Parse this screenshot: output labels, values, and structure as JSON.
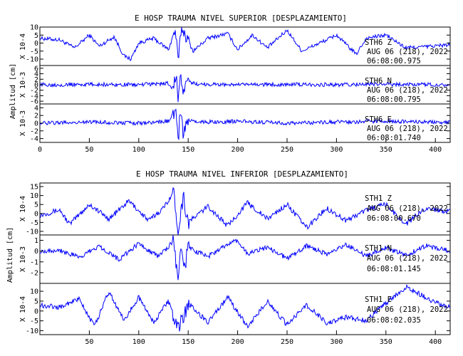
{
  "chart_data": [
    {
      "type": "line",
      "title": "E HOSP TRAUMA NIVEL SUPERIOR [DESPLAZAMIENTO]",
      "ylabel": "Amplitud [cm]",
      "xlim": [
        0,
        415
      ],
      "x_ticks": [
        "0",
        "50",
        "100",
        "150",
        "200",
        "250",
        "300",
        "350",
        "400"
      ],
      "grid": false,
      "line_color": "#0000ff",
      "panels": [
        {
          "station": "STH6 Z",
          "date": "AUG 06 (218), 2022",
          "time": "06:08:00.975",
          "scale": "X 10-4",
          "ylim": [
            -14,
            10
          ],
          "y_ticks": [
            "10",
            "5",
            "0",
            "-5",
            "-10"
          ],
          "series": [
            {
              "x": [
                0,
                20,
                35,
                50,
                60,
                75,
                85,
                92,
                100,
                115,
                130,
                137,
                140,
                143,
                148,
                155,
                170,
                190,
                200,
                215,
                230,
                250,
                265,
                290,
                300,
                320,
                330,
                350,
                370,
                395,
                415
              ],
              "y": [
                3,
                2,
                -3,
                5,
                -2,
                4,
                -8,
                -10,
                0,
                3,
                -4,
                8,
                -12,
                10,
                4,
                -5,
                3,
                6,
                -4,
                5,
                -3,
                8,
                -5,
                2,
                5,
                -7,
                3,
                5,
                -3,
                -2,
                -1
              ]
            }
          ]
        },
        {
          "station": "STH6 N",
          "date": "AUG 06 (218), 2022",
          "time": "06:08:00.795",
          "scale": "X 10-3",
          "ylim": [
            -7,
            7
          ],
          "y_ticks": [
            "6",
            "4",
            "2",
            "0",
            "-2",
            "-4",
            "-6"
          ],
          "series": [
            {
              "x": [
                0,
                50,
                100,
                130,
                135,
                138,
                140,
                142,
                145,
                150,
                160,
                200,
                250,
                300,
                350,
                415
              ],
              "y": [
                0,
                0.1,
                0,
                0.5,
                -2,
                5,
                -6,
                4,
                -3,
                1,
                0.2,
                0,
                0.1,
                0,
                0.2,
                0
              ]
            }
          ]
        },
        {
          "station": "STH6 E",
          "date": "AUG 06 (218), 2022",
          "time": "06:08:01.740",
          "scale": "X 10-3",
          "ylim": [
            -5,
            5
          ],
          "y_ticks": [
            "4",
            "2",
            "0",
            "-2",
            "-4"
          ],
          "series": [
            {
              "x": [
                0,
                50,
                100,
                130,
                138,
                140,
                142,
                145,
                150,
                160,
                200,
                250,
                300,
                350,
                415
              ],
              "y": [
                0,
                0.3,
                0,
                0.5,
                3,
                -5,
                4,
                -3,
                1,
                0.2,
                0.5,
                0,
                0.3,
                0.5,
                0.2
              ]
            }
          ]
        }
      ]
    },
    {
      "type": "line",
      "title": "E HOSP TRAUMA NIVEL INFERIOR [DESPLAZAMIENTO]",
      "ylabel": "Amplitud [cm]",
      "xlim": [
        0,
        415
      ],
      "x_ticks": [
        "50",
        "100",
        "150",
        "200",
        "250",
        "300",
        "350",
        "400"
      ],
      "grid": false,
      "line_color": "#0000ff",
      "panels": [
        {
          "station": "STH1 Z",
          "date": "AUG 06 (218), 2022",
          "time": "06:08:00.670",
          "scale": "X 10-4",
          "ylim": [
            -12,
            17
          ],
          "y_ticks": [
            "15",
            "10",
            "5",
            "0",
            "-5",
            "-10"
          ],
          "series": [
            {
              "x": [
                0,
                20,
                30,
                50,
                70,
                90,
                110,
                125,
                135,
                140,
                145,
                150,
                170,
                190,
                210,
                230,
                250,
                270,
                290,
                310,
                330,
                350,
                370,
                390,
                415
              ],
              "y": [
                -1,
                2,
                -6,
                5,
                -3,
                7,
                -4,
                3,
                12,
                -9,
                10,
                -5,
                4,
                -7,
                6,
                -3,
                5,
                -8,
                3,
                -4,
                2,
                5,
                -6,
                3,
                1
              ]
            }
          ]
        },
        {
          "station": "STH1 N",
          "date": "AUG 06 (218), 2022",
          "time": "06:08:01.145",
          "scale": "X 10-3",
          "ylim": [
            -3,
            1.5
          ],
          "y_ticks": [
            "1",
            "0",
            "-1",
            "-2"
          ],
          "series": [
            {
              "x": [
                0,
                20,
                40,
                60,
                80,
                100,
                120,
                135,
                140,
                143,
                146,
                150,
                170,
                190,
                200,
                210,
                230,
                250,
                270,
                290,
                310,
                330,
                350,
                370,
                390,
                415
              ],
              "y": [
                0,
                0.1,
                -0.6,
                0.5,
                -0.8,
                0.7,
                -0.5,
                0.9,
                -2.8,
                0.8,
                -1.8,
                0.3,
                -0.5,
                0.6,
                1,
                -0.3,
                0.4,
                -0.7,
                0.5,
                -0.3,
                0.6,
                -0.5,
                0.3,
                -0.4,
                0.5,
                0
              ]
            }
          ]
        },
        {
          "station": "STH1 E",
          "date": "AUG 06 (218), 2022",
          "time": "06:08:02.035",
          "scale": "X 10-4",
          "ylim": [
            -12,
            14
          ],
          "y_ticks": [
            "10",
            "5",
            "0",
            "-5",
            "-10"
          ],
          "series": [
            {
              "x": [
                0,
                20,
                40,
                55,
                70,
                85,
                100,
                115,
                130,
                140,
                150,
                170,
                190,
                210,
                230,
                250,
                270,
                290,
                310,
                330,
                350,
                370,
                380,
                395,
                415
              ],
              "y": [
                3,
                2,
                6,
                -8,
                10,
                -5,
                7,
                -6,
                5,
                -10,
                4,
                -6,
                7,
                -8,
                5,
                -7,
                3,
                -6,
                -3,
                -5,
                4,
                12,
                10,
                5,
                2
              ]
            }
          ]
        }
      ]
    }
  ]
}
